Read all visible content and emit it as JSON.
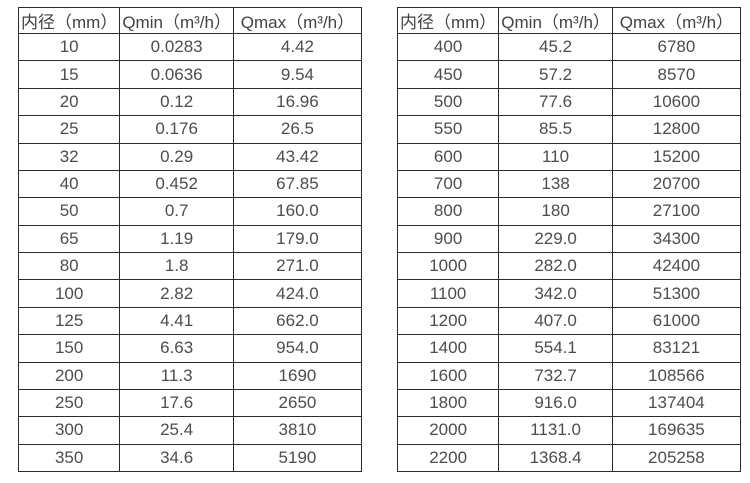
{
  "colors": {
    "border": "#2b2b2b",
    "text": "#4d4d4d",
    "header_text": "#424242",
    "background": "#ffffff"
  },
  "left_table": {
    "headers": [
      "内径（mm）",
      "Qmin（m³/h）",
      "Qmax（m³/h）"
    ],
    "rows": [
      [
        "10",
        "0.0283",
        "4.42"
      ],
      [
        "15",
        "0.0636",
        "9.54"
      ],
      [
        "20",
        "0.12",
        "16.96"
      ],
      [
        "25",
        "0.176",
        "26.5"
      ],
      [
        "32",
        "0.29",
        "43.42"
      ],
      [
        "40",
        "0.452",
        "67.85"
      ],
      [
        "50",
        "0.7",
        "160.0"
      ],
      [
        "65",
        "1.19",
        "179.0"
      ],
      [
        "80",
        "1.8",
        "271.0"
      ],
      [
        "100",
        "2.82",
        "424.0"
      ],
      [
        "125",
        "4.41",
        "662.0"
      ],
      [
        "150",
        "6.63",
        "954.0"
      ],
      [
        "200",
        "11.3",
        "1690"
      ],
      [
        "250",
        "17.6",
        "2650"
      ],
      [
        "300",
        "25.4",
        "3810"
      ],
      [
        "350",
        "34.6",
        "5190"
      ]
    ]
  },
  "right_table": {
    "headers": [
      "内径（mm）",
      "Qmin（m³/h）",
      "Qmax（m³/h）"
    ],
    "rows": [
      [
        "400",
        "45.2",
        "6780"
      ],
      [
        "450",
        "57.2",
        "8570"
      ],
      [
        "500",
        "77.6",
        "10600"
      ],
      [
        "550",
        "85.5",
        "12800"
      ],
      [
        "600",
        "110",
        "15200"
      ],
      [
        "700",
        "138",
        "20700"
      ],
      [
        "800",
        "180",
        "27100"
      ],
      [
        "900",
        "229.0",
        "34300"
      ],
      [
        "1000",
        "282.0",
        "42400"
      ],
      [
        "1100",
        "342.0",
        "51300"
      ],
      [
        "1200",
        "407.0",
        "61000"
      ],
      [
        "1400",
        "554.1",
        "83121"
      ],
      [
        "1600",
        "732.7",
        "108566"
      ],
      [
        "1800",
        "916.0",
        "137404"
      ],
      [
        "2000",
        "1131.0",
        "169635"
      ],
      [
        "2200",
        "1368.4",
        "205258"
      ]
    ]
  }
}
